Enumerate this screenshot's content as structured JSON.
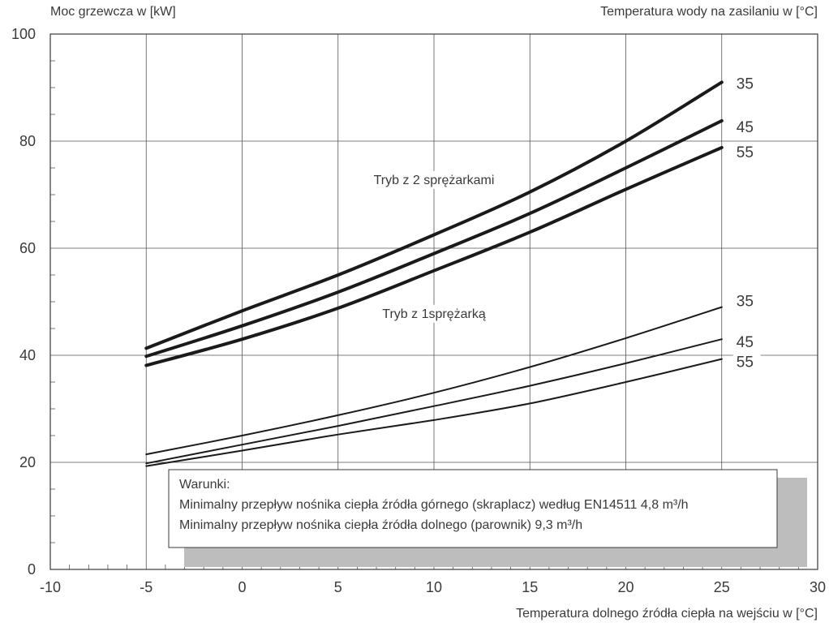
{
  "chart_data": {
    "type": "line",
    "ylabel": "Moc grzewcza w [kW]",
    "right_label": "Temperatura wody na zasilaniu w [°C]",
    "xlabel": "Temperatura dolnego źródła ciepła na wejściu w [°C]",
    "xlim": [
      -10,
      30
    ],
    "ylim": [
      0,
      100
    ],
    "x_ticks": [
      -10,
      -5,
      0,
      5,
      10,
      15,
      20,
      25,
      30
    ],
    "y_ticks": [
      0,
      20,
      40,
      60,
      80,
      100
    ],
    "grid": true,
    "series": [
      {
        "name": "35",
        "group": "two",
        "x": [
          -5,
          0,
          5,
          10,
          15,
          20,
          25
        ],
        "y": [
          41.3,
          48.3,
          55.0,
          62.5,
          70.5,
          80.0,
          91.0
        ]
      },
      {
        "name": "45",
        "group": "two",
        "x": [
          -5,
          0,
          5,
          10,
          15,
          20,
          25
        ],
        "y": [
          39.8,
          45.5,
          51.8,
          59.0,
          66.5,
          75.0,
          83.8
        ]
      },
      {
        "name": "55",
        "group": "two",
        "x": [
          -5,
          0,
          5,
          10,
          15,
          20,
          25
        ],
        "y": [
          38.1,
          43.0,
          48.8,
          55.8,
          63.0,
          71.0,
          78.8
        ]
      },
      {
        "name": "35",
        "group": "one",
        "x": [
          -5,
          0,
          5,
          10,
          15,
          20,
          25
        ],
        "y": [
          21.5,
          25.0,
          28.8,
          33.0,
          37.8,
          43.2,
          49.0
        ]
      },
      {
        "name": "45",
        "group": "one",
        "x": [
          -5,
          0,
          5,
          10,
          15,
          20,
          25
        ],
        "y": [
          19.8,
          23.3,
          26.8,
          30.5,
          34.3,
          38.5,
          43.0
        ]
      },
      {
        "name": "55",
        "group": "one",
        "x": [
          -5,
          0,
          5,
          10,
          15,
          20,
          25
        ],
        "y": [
          19.3,
          22.2,
          25.2,
          27.9,
          31.0,
          35.0,
          39.3
        ]
      }
    ],
    "annotations": [
      {
        "text": "Tryb z 2 sprężarkami",
        "x": 10,
        "y": 72
      },
      {
        "text": "Tryb z 1sprężarką",
        "x": 10,
        "y": 47
      }
    ],
    "note": {
      "lines": [
        "Warunki:",
        "Minimalny przepływ nośnika ciepła źródła górnego (skraplacz) według EN14511 4,8 m³/h",
        "Minimalny przepływ nośnika ciepła źródła dolnego (parownik) 9,3 m³/h"
      ]
    }
  }
}
